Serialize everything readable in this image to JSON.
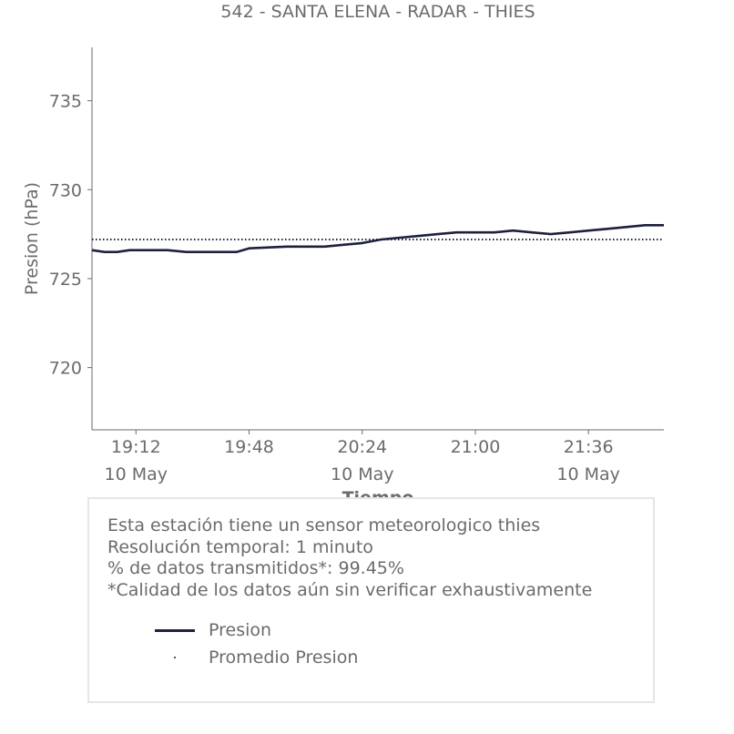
{
  "title": "542 - SANTA ELENA - RADAR - THIES",
  "colors": {
    "series": "#1e2040",
    "text": "#6b6b6b",
    "axis": "#6b6b6b",
    "box_border": "#e6e6e6"
  },
  "chart_data": {
    "type": "line",
    "title": "542 - SANTA ELENA - RADAR - THIES",
    "xlabel": "Tiempo",
    "ylabel": "Presion (hPa)",
    "xlim": [
      "18:58",
      "22:00"
    ],
    "ylim": [
      716.5,
      738.0
    ],
    "grid": false,
    "yticks": [
      720,
      725,
      730,
      735
    ],
    "xticks": [
      {
        "time": "19:12",
        "label": "19:12",
        "sublabel": "10 May"
      },
      {
        "time": "19:48",
        "label": "19:48",
        "sublabel": ""
      },
      {
        "time": "20:24",
        "label": "20:24",
        "sublabel": "10 May"
      },
      {
        "time": "21:00",
        "label": "21:00",
        "sublabel": ""
      },
      {
        "time": "21:36",
        "label": "21:36",
        "sublabel": "10 May"
      }
    ],
    "series": [
      {
        "name": "Presion",
        "style": "line",
        "x": [
          "18:58",
          "19:02",
          "19:06",
          "19:10",
          "19:16",
          "19:22",
          "19:28",
          "19:34",
          "19:40",
          "19:44",
          "19:48",
          "20:00",
          "20:12",
          "20:18",
          "20:24",
          "20:30",
          "20:36",
          "20:42",
          "20:48",
          "20:54",
          "21:00",
          "21:06",
          "21:12",
          "21:18",
          "21:24",
          "21:30",
          "21:36",
          "21:42",
          "21:48",
          "21:54",
          "22:00"
        ],
        "y": [
          726.6,
          726.5,
          726.5,
          726.6,
          726.6,
          726.6,
          726.5,
          726.5,
          726.5,
          726.5,
          726.7,
          726.8,
          726.8,
          726.9,
          727.0,
          727.2,
          727.3,
          727.4,
          727.5,
          727.6,
          727.6,
          727.6,
          727.7,
          727.6,
          727.5,
          727.6,
          727.7,
          727.8,
          727.9,
          728.0,
          728.0
        ]
      },
      {
        "name": "Promedio Presion",
        "style": "dotted",
        "x": [
          "18:58",
          "22:00"
        ],
        "y": [
          727.2,
          727.2
        ]
      }
    ]
  },
  "info": {
    "line1": "Esta estación tiene un sensor meteorologico thies",
    "line2": "Resolución temporal: 1 minuto",
    "line3": "% de datos transmitidos*: 99.45%",
    "line4": "*Calidad de los datos aún sin verificar exhaustivamente"
  },
  "legend": [
    {
      "label": "Presion"
    },
    {
      "label": "Promedio Presion"
    }
  ]
}
